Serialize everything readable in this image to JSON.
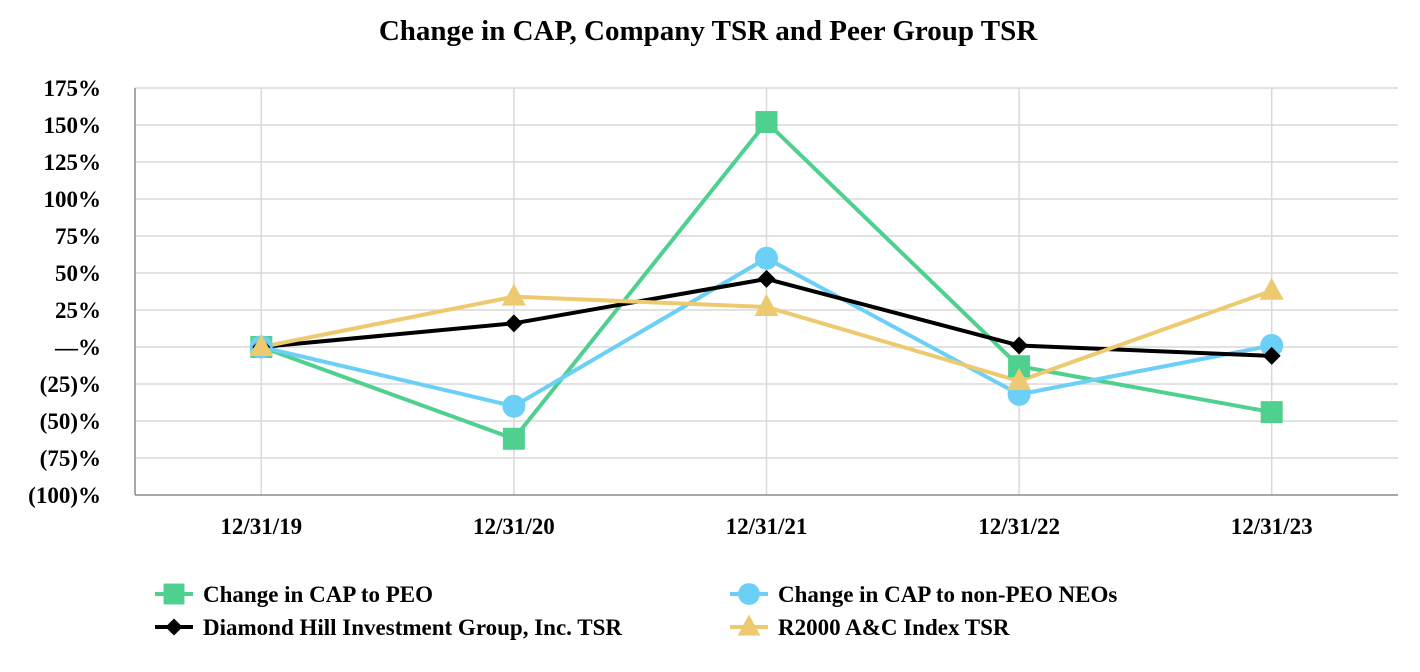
{
  "chart_data": {
    "type": "line",
    "title": "Change in CAP,  Company TSR and Peer Group TSR",
    "xlabel": "",
    "ylabel": "",
    "categories": [
      "12/31/19",
      "12/31/20",
      "12/31/21",
      "12/31/22",
      "12/31/23"
    ],
    "ylim": [
      -100,
      175
    ],
    "yticks": [
      175,
      150,
      125,
      100,
      75,
      50,
      25,
      0,
      -25,
      -50,
      -75,
      -100
    ],
    "ytick_labels": [
      "175%",
      "150%",
      "125%",
      "100%",
      "75%",
      "50%",
      "25%",
      "—%",
      "(25)%",
      "(50)%",
      "(75)%",
      "(100)%"
    ],
    "grid": true,
    "legend_position": "bottom",
    "series": [
      {
        "name": "Change in CAP to PEO",
        "color": "#4fd08f",
        "marker": "square",
        "values": [
          0,
          -62,
          152,
          -13,
          -44
        ]
      },
      {
        "name": "Change in CAP to non-PEO NEOs",
        "color": "#6ccff6",
        "marker": "circle",
        "values": [
          0,
          -40,
          60,
          -32,
          1
        ]
      },
      {
        "name": "Diamond Hill Investment Group, Inc. TSR",
        "color": "#000000",
        "marker": "diamond",
        "values": [
          0,
          16,
          46,
          1,
          -6
        ]
      },
      {
        "name": "R2000 A&C Index TSR",
        "color": "#edc96f",
        "marker": "triangle",
        "values": [
          0,
          34,
          27,
          -23,
          38
        ]
      }
    ]
  }
}
